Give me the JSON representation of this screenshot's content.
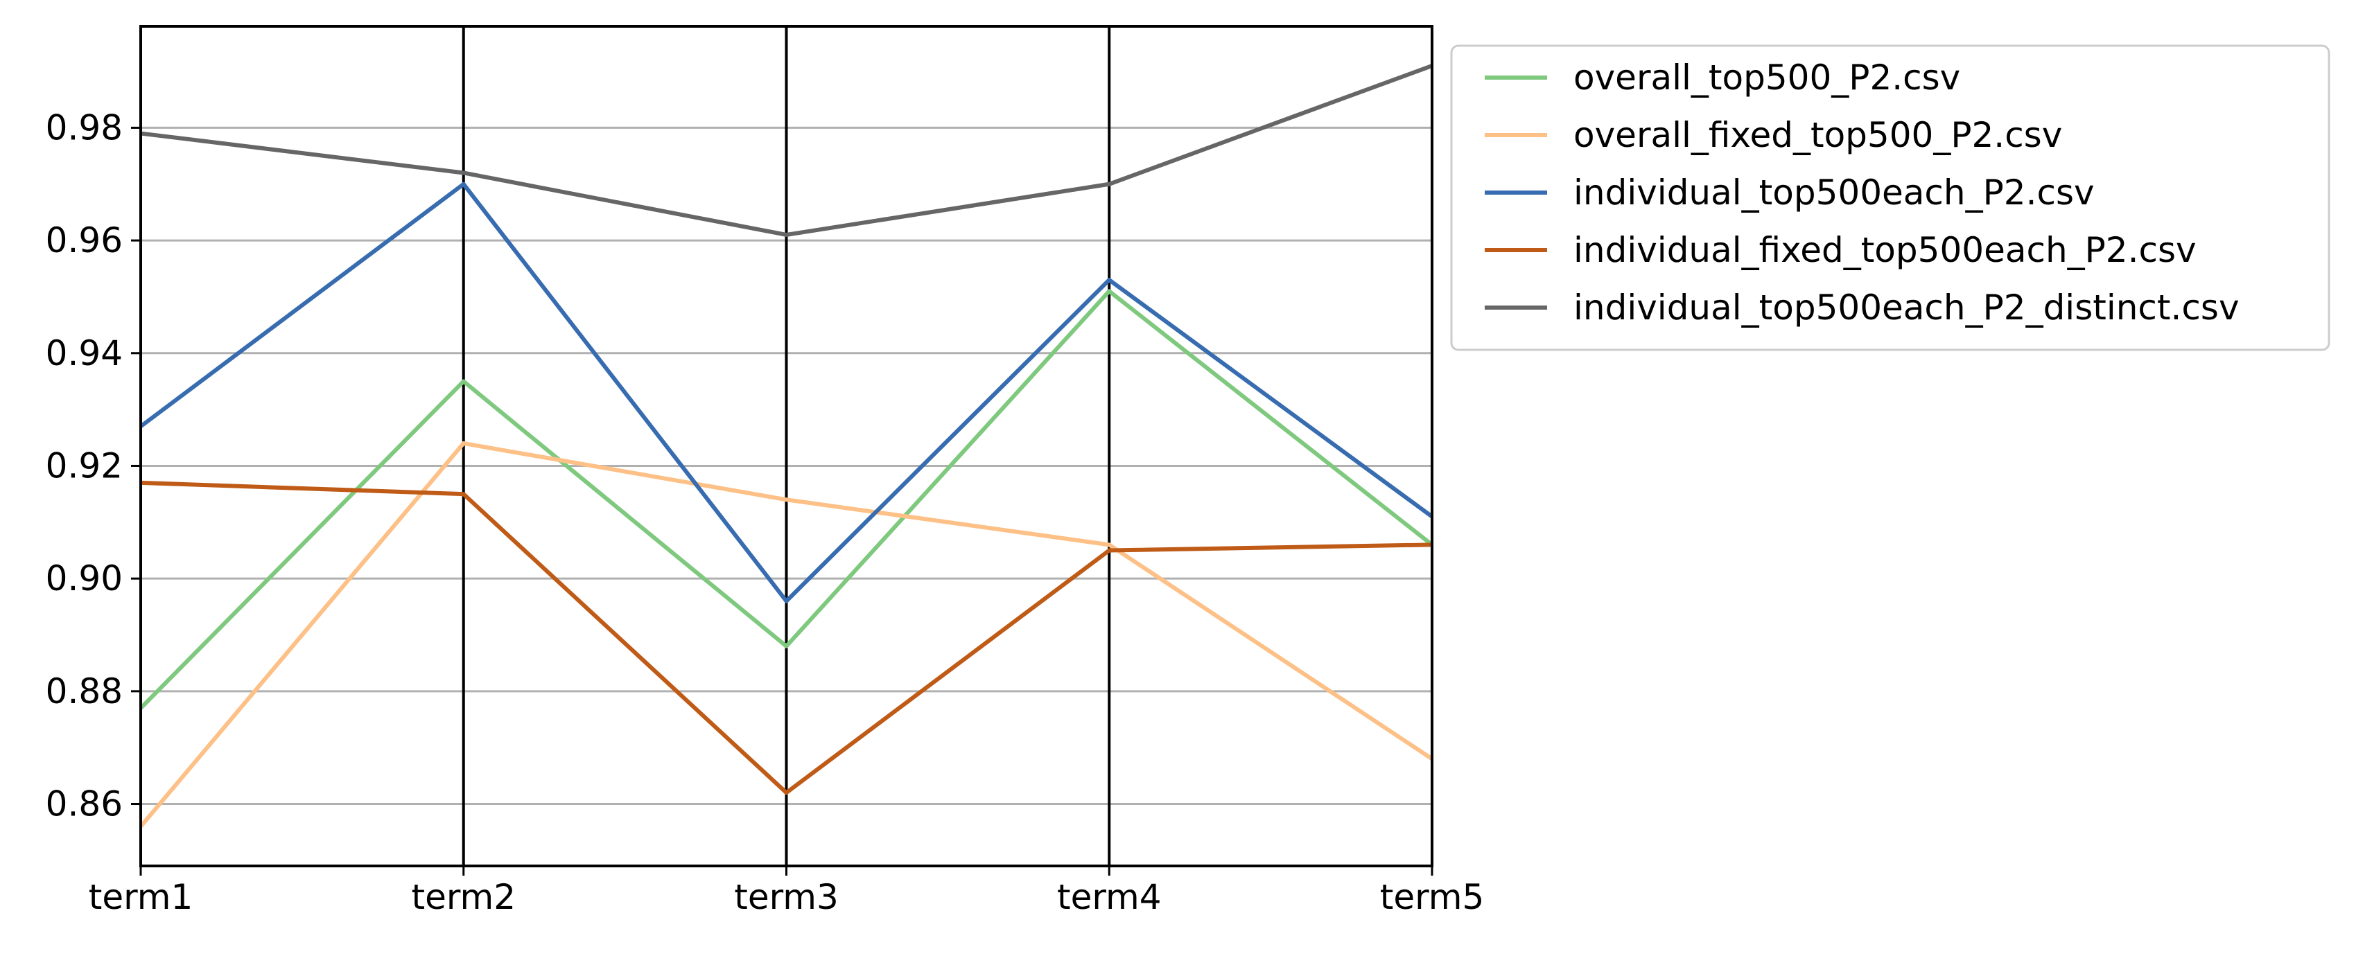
{
  "chart_data": {
    "type": "line",
    "subtype": "parallel-coordinates",
    "title": "",
    "xlabel": "",
    "ylabel": "",
    "categories": [
      "term1",
      "term2",
      "term3",
      "term4",
      "term5"
    ],
    "ylim": [
      0.849,
      0.998
    ],
    "yticks": [
      0.86,
      0.88,
      0.9,
      0.92,
      0.94,
      0.96,
      0.98
    ],
    "ytick_labels": [
      "0.86",
      "0.88",
      "0.90",
      "0.92",
      "0.94",
      "0.96",
      "0.98"
    ],
    "grid": "horizontal",
    "vertical_axis_lines": true,
    "legend_placement": "outside-top-right",
    "series": [
      {
        "name": "overall_top500_P2.csv",
        "color": "#7fc97f",
        "values": [
          0.877,
          0.935,
          0.888,
          0.951,
          0.906
        ]
      },
      {
        "name": "overall_fixed_top500_P2.csv",
        "color": "#fdc086",
        "values": [
          0.856,
          0.924,
          0.914,
          0.906,
          0.868
        ]
      },
      {
        "name": "individual_top500each_P2.csv",
        "color": "#386cb0",
        "values": [
          0.927,
          0.97,
          0.896,
          0.953,
          0.911
        ]
      },
      {
        "name": "individual_fixed_top500each_P2.csv",
        "color": "#bf5b17",
        "values": [
          0.917,
          0.915,
          0.862,
          0.905,
          0.906
        ]
      },
      {
        "name": "individual_top500each_P2_distinct.csv",
        "color": "#666666",
        "values": [
          0.979,
          0.972,
          0.961,
          0.97,
          0.991
        ]
      }
    ]
  }
}
